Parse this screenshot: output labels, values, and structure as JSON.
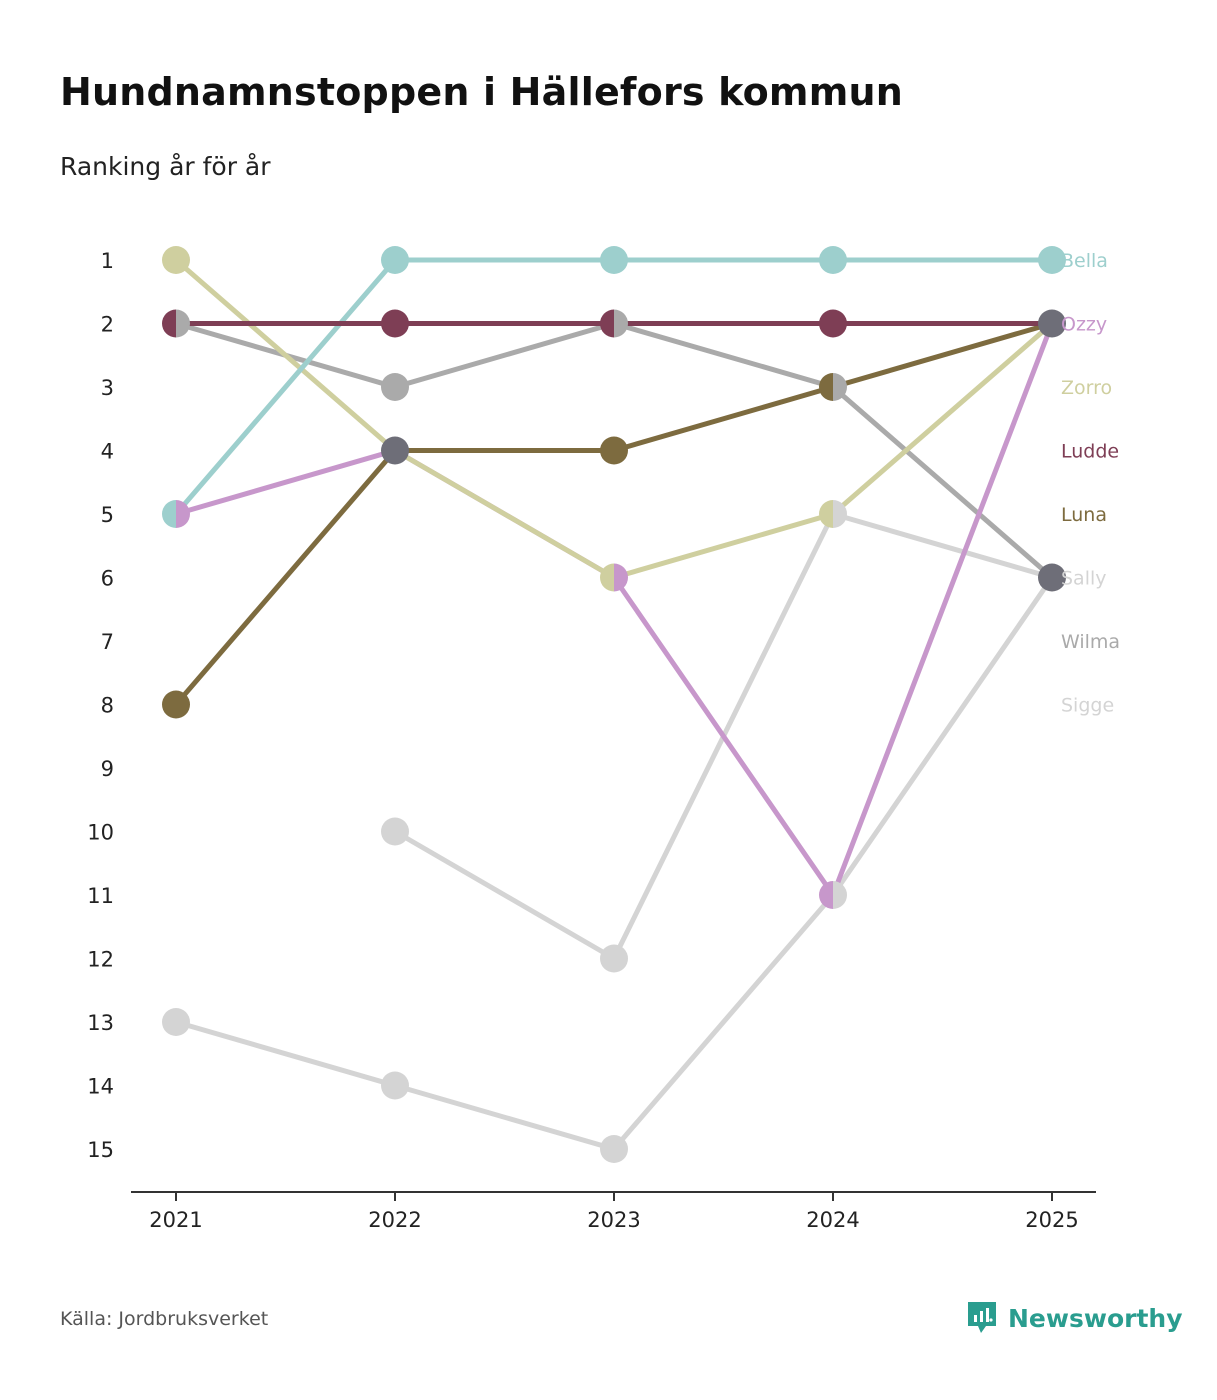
{
  "title": "Hundnamnstoppen i Hällefors kommun",
  "subtitle": "Ranking år för år",
  "source": "Källa: Jordbruksverket",
  "brand": "Newsworthy",
  "colors": {
    "brand": "#2a9d8f",
    "axis": "#333333",
    "text": "#222222"
  },
  "chart_data": {
    "type": "line",
    "title": "Hundnamnstoppen i Hällefors kommun",
    "subtitle": "Ranking år för år",
    "x": [
      "2021",
      "2022",
      "2023",
      "2024",
      "2025"
    ],
    "y_ticks": [
      "1",
      "2",
      "3",
      "4",
      "5",
      "6",
      "7",
      "8",
      "9",
      "10",
      "11",
      "12",
      "13",
      "14",
      "15"
    ],
    "ylim": [
      1,
      15
    ],
    "y_inverted": true,
    "xlabel": "",
    "ylabel": "",
    "grid": false,
    "series": [
      {
        "name": "Sigge",
        "color": "#d4d4d4",
        "values": [
          13,
          14,
          15,
          11,
          6
        ]
      },
      {
        "name": "Sally",
        "color": "#d4d4d4",
        "values": [
          null,
          10,
          12,
          5,
          6
        ]
      },
      {
        "name": "Wilma",
        "color": "#aaaaaa",
        "values": [
          2,
          3,
          2,
          3,
          6
        ]
      },
      {
        "name": "Ozzy",
        "color": "#c797cb",
        "values": [
          5,
          4,
          6,
          11,
          2
        ]
      },
      {
        "name": "Zorro",
        "color": "#cfcf9f",
        "values": [
          1,
          4,
          6,
          5,
          2
        ]
      },
      {
        "name": "Luna",
        "color": "#7d6b3f",
        "values": [
          8,
          4,
          4,
          3,
          2
        ]
      },
      {
        "name": "Bella",
        "color": "#9dcfcd",
        "values": [
          5,
          1,
          1,
          1,
          1
        ]
      },
      {
        "name": "Ludde",
        "color": "#7e3e55",
        "values": [
          2,
          2,
          2,
          2,
          2
        ]
      }
    ],
    "legend": {
      "position": "right",
      "entries": [
        {
          "name": "Bella",
          "color": "#9dcfcd",
          "rank": 1
        },
        {
          "name": "Ozzy",
          "color": "#c797cb",
          "rank": 2
        },
        {
          "name": "Zorro",
          "color": "#cfcf9f",
          "rank": 3
        },
        {
          "name": "Ludde",
          "color": "#7e3e55",
          "rank": 4
        },
        {
          "name": "Luna",
          "color": "#7d6b3f",
          "rank": 5
        },
        {
          "name": "Sally",
          "color": "#d4d4d4",
          "rank": 6
        },
        {
          "name": "Wilma",
          "color": "#aaaaaa",
          "rank": 7
        },
        {
          "name": "Sigge",
          "color": "#d4d4d4",
          "rank": 8
        }
      ]
    },
    "shared_point_color": "#6e6e78"
  }
}
